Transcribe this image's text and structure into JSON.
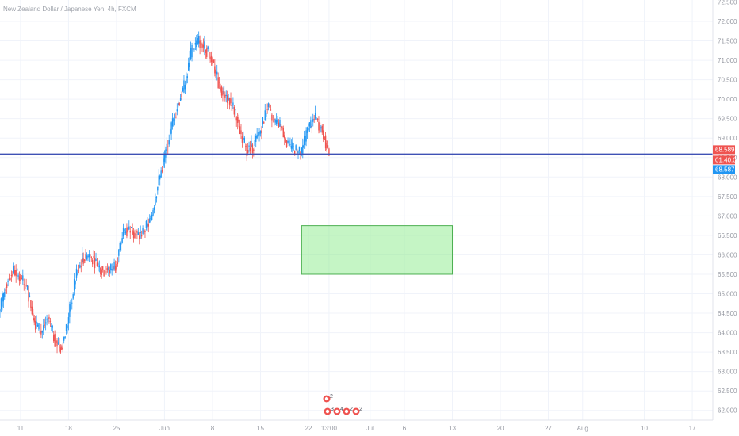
{
  "chart_data": {
    "type": "candlestick",
    "title": "New Zealand Dollar / Japanese Yen, 4h, FXCM",
    "timeframe": "4h",
    "source": "FXCM",
    "y_range": [
      61.75,
      72.55
    ],
    "y_ticks": [
      "62.000",
      "62.500",
      "63.000",
      "63.500",
      "64.000",
      "64.500",
      "65.000",
      "65.500",
      "66.000",
      "66.500",
      "67.000",
      "67.500",
      "68.000",
      "68.500",
      "69.000",
      "69.500",
      "70.000",
      "70.500",
      "71.000",
      "71.500",
      "72.000",
      "72.500"
    ],
    "x_ticks": [
      "11",
      "18",
      "25",
      "Jun",
      "8",
      "15",
      "22",
      "13:00",
      "Jul",
      "6",
      "13",
      "20",
      "27",
      "Aug",
      "10",
      "17"
    ],
    "series": [
      {
        "name": "price",
        "points": [
          {
            "date": "May 8",
            "close": 64.6
          },
          {
            "date": "May 9",
            "close": 65.3
          },
          {
            "date": "May 10",
            "close": 65.6
          },
          {
            "date": "May 11",
            "close": 65.4
          },
          {
            "date": "May 12",
            "close": 65.1
          },
          {
            "date": "May 13",
            "close": 64.3
          },
          {
            "date": "May 14",
            "close": 64.0
          },
          {
            "date": "May 15",
            "close": 64.4
          },
          {
            "date": "May 16",
            "close": 63.8
          },
          {
            "date": "May 17",
            "close": 63.6
          },
          {
            "date": "May 18",
            "close": 64.4
          },
          {
            "date": "May 19",
            "close": 65.4
          },
          {
            "date": "May 20",
            "close": 65.9
          },
          {
            "date": "May 21",
            "close": 66.0
          },
          {
            "date": "May 22",
            "close": 65.8
          },
          {
            "date": "May 23",
            "close": 65.6
          },
          {
            "date": "May 24",
            "close": 65.6
          },
          {
            "date": "May 25",
            "close": 65.8
          },
          {
            "date": "May 26",
            "close": 66.6
          },
          {
            "date": "May 27",
            "close": 66.7
          },
          {
            "date": "May 28",
            "close": 66.5
          },
          {
            "date": "May 29",
            "close": 66.6
          },
          {
            "date": "May 30",
            "close": 66.9
          },
          {
            "date": "May 31",
            "close": 67.8
          },
          {
            "date": "Jun 1",
            "close": 68.5
          },
          {
            "date": "Jun 2",
            "close": 69.3
          },
          {
            "date": "Jun 3",
            "close": 69.9
          },
          {
            "date": "Jun 4",
            "close": 70.4
          },
          {
            "date": "Jun 5",
            "close": 71.3
          },
          {
            "date": "Jun 6",
            "close": 71.5
          },
          {
            "date": "Jun 7",
            "close": 71.3
          },
          {
            "date": "Jun 8",
            "close": 71.0
          },
          {
            "date": "Jun 9",
            "close": 70.3
          },
          {
            "date": "Jun 10",
            "close": 70.1
          },
          {
            "date": "Jun 11",
            "close": 69.8
          },
          {
            "date": "Jun 12",
            "close": 69.2
          },
          {
            "date": "Jun 13",
            "close": 68.7
          },
          {
            "date": "Jun 14",
            "close": 68.8
          },
          {
            "date": "Jun 15",
            "close": 69.2
          },
          {
            "date": "Jun 16",
            "close": 69.8
          },
          {
            "date": "Jun 17",
            "close": 69.4
          },
          {
            "date": "Jun 18",
            "close": 69.3
          },
          {
            "date": "Jun 19",
            "close": 68.8
          },
          {
            "date": "Jun 20",
            "close": 68.7
          },
          {
            "date": "Jun 21",
            "close": 68.6
          },
          {
            "date": "Jun 22",
            "close": 69.3
          },
          {
            "date": "Jun 23",
            "close": 69.5
          },
          {
            "date": "Jun 24",
            "close": 69.2
          },
          {
            "date": "Jun 25",
            "close": 68.6
          }
        ]
      }
    ],
    "lines": [
      {
        "name": "horizontal-level",
        "y": 68.589,
        "color": "#3f51b5"
      }
    ],
    "zones": [
      {
        "name": "target-zone",
        "y_top": 66.75,
        "y_bottom": 65.5,
        "x_start": "Jun 21",
        "x_end": "Jul 13",
        "color": "#7ee87e"
      }
    ],
    "price_labels": [
      {
        "text": "68.589",
        "color": "#ef5350"
      },
      {
        "text": "01:40:09",
        "color": "#ef5350"
      },
      {
        "text": "68.587",
        "color": "#2196f3"
      }
    ],
    "events": {
      "top_count": "2",
      "bottom_counts": [
        "3",
        "4",
        "2",
        "2"
      ]
    },
    "colors": {
      "up": "#2196f3",
      "down": "#ef5350",
      "grid": "#f0f3fa",
      "axis_text": "#9598a1"
    }
  }
}
